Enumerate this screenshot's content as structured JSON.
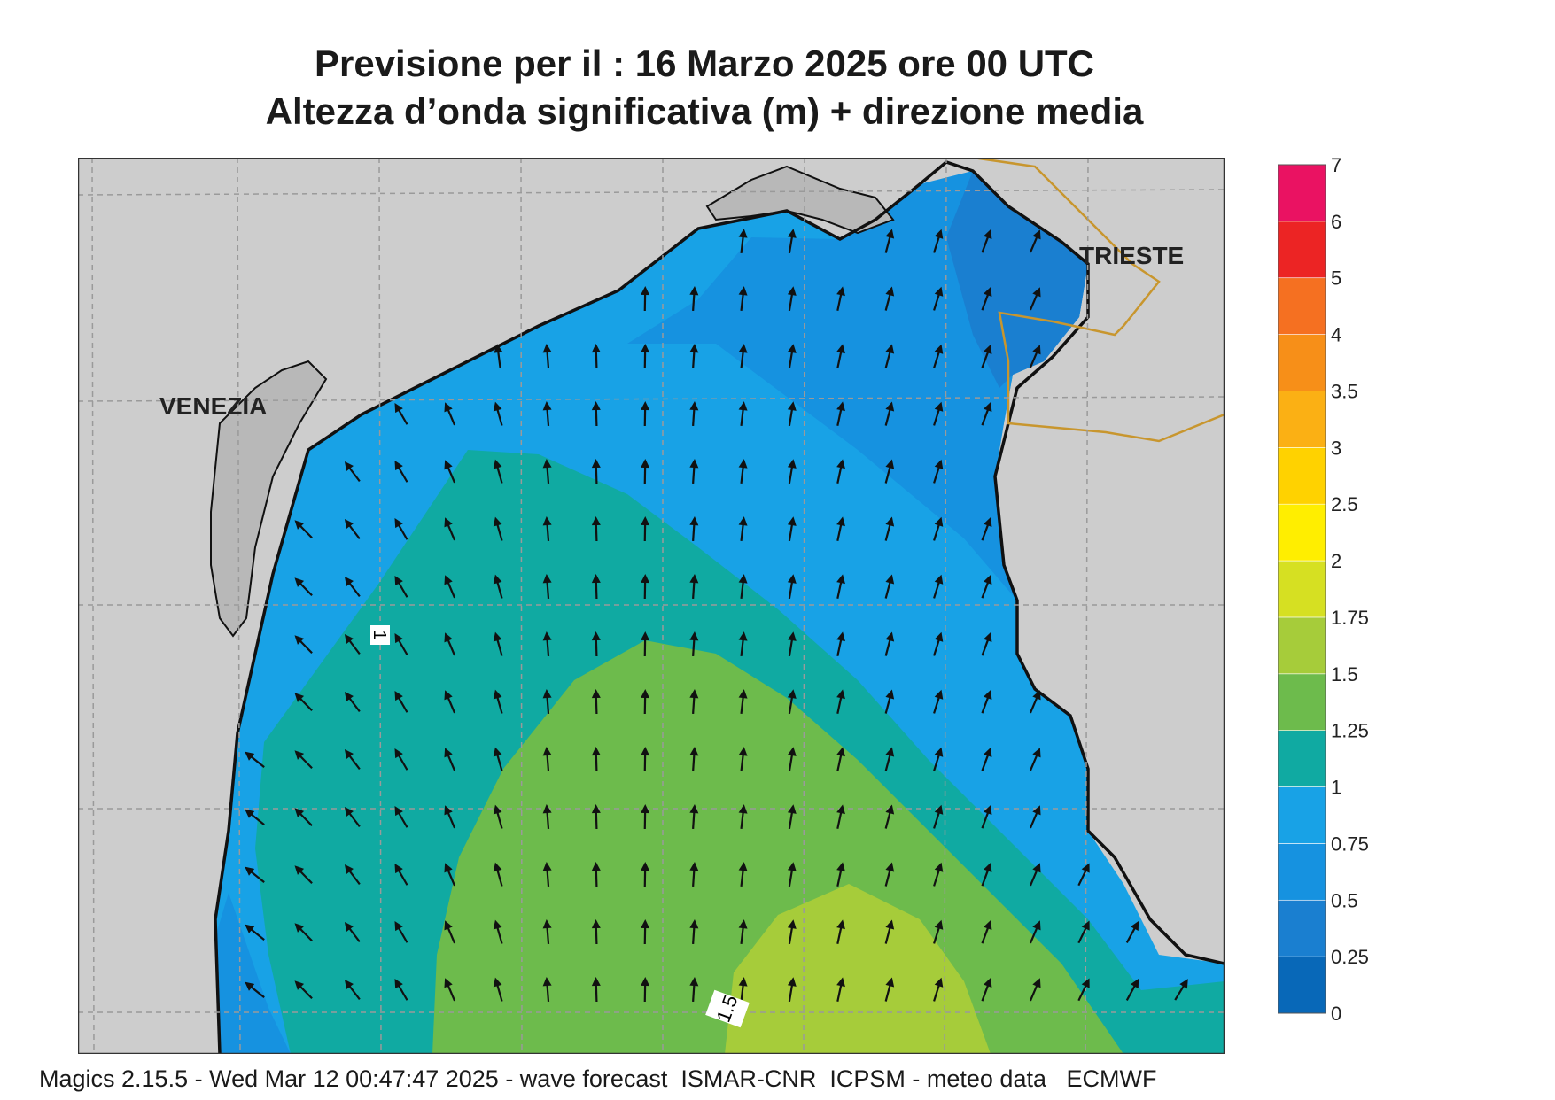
{
  "title": {
    "line1": "Previsione per il  :  16   Marzo   2025   ore 00 UTC",
    "line2": "Altezza d’onda significativa (m) + direzione media"
  },
  "map": {
    "cities": [
      {
        "name": "VENEZIA"
      },
      {
        "name": "TRIESTE"
      }
    ],
    "contour_labels": [
      "1",
      "1.5"
    ],
    "land_color": "#cdcdcd",
    "coast_color": "#111111",
    "border_color": "#c8962e",
    "grid_color": "#9a9a9a",
    "arrow_direction_summary": "north-northwest"
  },
  "legend": {
    "labels": [
      "0",
      "0.25",
      "0.5",
      "0.75",
      "1",
      "1.25",
      "1.5",
      "1.75",
      "2",
      "2.5",
      "3",
      "3.5",
      "4",
      "5",
      "6",
      "7"
    ],
    "colors": [
      "#0868b8",
      "#1a7fd0",
      "#1692e0",
      "#18a2e6",
      "#10aaa2",
      "#6dbb4c",
      "#a6cc3a",
      "#d6e022",
      "#ffee00",
      "#ffd200",
      "#fbb014",
      "#f78f18",
      "#f57021",
      "#ec2424",
      "#ea1262"
    ]
  },
  "footer": "Magics 2.15.5 - Wed Mar 12 00:47:47 2025 - wave forecast  ISMAR-CNR  ICPSM - meteo data   ECMWF"
}
